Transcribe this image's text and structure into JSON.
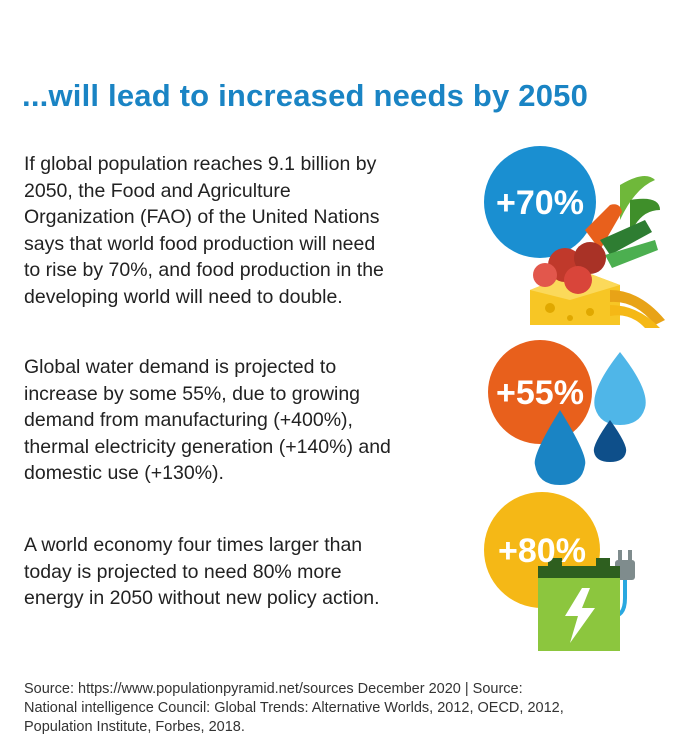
{
  "title": "...will lead to increased needs by 2050",
  "sections": [
    {
      "lines": [
        "If global population reaches 9.1 billion by",
        "2050, the Food and Agriculture",
        "Organization (FAO) of  the United Nations",
        "says that world food production will need",
        "to rise by 70%, and food production in the",
        "developing world will need to double."
      ],
      "badge": "+70%",
      "badge_color": "#1a8fd1",
      "icon": "food-icon"
    },
    {
      "lines": [
        "Global water demand is projected to",
        "increase by some 55%, due to growing",
        "demand from manufacturing (+400%),",
        "thermal electricity generation (+140%) and",
        "domestic use (+130%)."
      ],
      "badge": "+55%",
      "badge_color": "#e8601c",
      "icon": "water-drops-icon"
    },
    {
      "lines": [
        "A world economy four times larger than",
        "today is projected to need 80% more",
        "energy in 2050 without new policy action."
      ],
      "badge": "+80%",
      "badge_color": "#f5b816",
      "icon": "battery-plug-icon"
    }
  ],
  "source_lines": [
    "Source: https://www.populationpyramid.net/sources  December 2020 | Source:",
    "National intelligence  Council: Global Trends: Alternative Worlds, 2012, OECD, 2012,",
    "Population Institute, Forbes, 2018."
  ]
}
